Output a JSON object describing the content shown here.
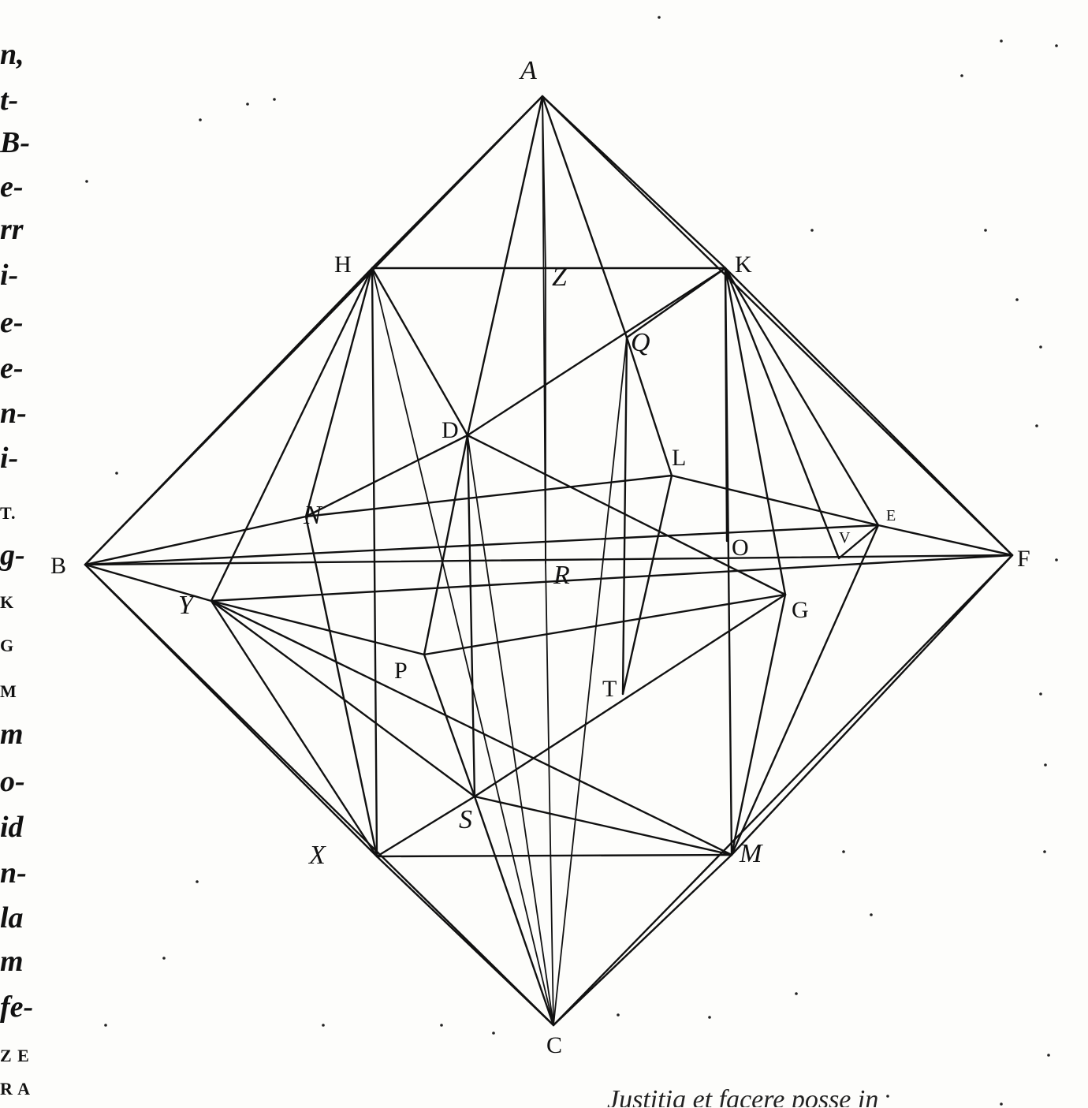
{
  "margin_fragments": [
    "n,",
    "t-",
    "B-",
    "e-",
    "rr",
    "i-",
    "e-",
    "e-",
    "n-",
    "i-",
    "T.",
    "g-",
    "K",
    "G",
    "M",
    "m",
    "o-",
    "id",
    "n-",
    "la",
    "m",
    "fe-",
    "Z E",
    "R A"
  ],
  "vertex_labels": {
    "A": "A",
    "B": "B",
    "C": "C",
    "F": "F",
    "H": "H",
    "K": "K",
    "X": "X",
    "M": "M",
    "Z": "Z",
    "Q": "Q",
    "D": "D",
    "L": "L",
    "N": "N",
    "E": "E",
    "O": "O",
    "V": "V",
    "R": "R",
    "Y": "Y",
    "G": "G",
    "P": "P",
    "T": "T",
    "S": "S"
  },
  "bottom_text": "Justitia et facere posse in"
}
